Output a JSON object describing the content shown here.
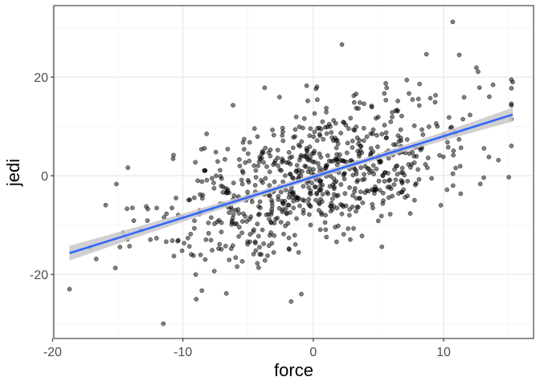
{
  "chart_data": {
    "type": "scatter",
    "title": "",
    "xlabel": "force",
    "ylabel": "jedi",
    "xlim": [
      -19.9,
      16.9
    ],
    "ylim": [
      -33.0,
      34.5
    ],
    "x_ticks": [
      -20,
      -10,
      0,
      10
    ],
    "y_ticks": [
      -20,
      0,
      20
    ],
    "x_tick_labels": [
      "-20",
      "-10",
      "0",
      "10"
    ],
    "y_tick_labels": [
      "-20",
      "0",
      "20"
    ],
    "x_minor": [
      -15,
      -5,
      5,
      15
    ],
    "y_minor": [
      -30,
      -10,
      10,
      30
    ],
    "grid": true,
    "theme": "white background with light gray grid and dark panel border",
    "n_points": 800,
    "point_color": "#000000",
    "point_opacity": 0.5,
    "trend_line": {
      "method": "linear fit with confidence band",
      "x": [
        -18.7,
        15.3
      ],
      "y": [
        -15.7,
        12.4
      ],
      "band_lower": [
        -17.2,
        11.0
      ],
      "band_upper": [
        -14.2,
        13.8
      ],
      "color": "#3366FF",
      "band_color": "#c8c8c8"
    },
    "outliers": [
      {
        "x": -18.7,
        "y": -23.0
      },
      {
        "x": -11.5,
        "y": -30.0
      },
      {
        "x": 10.7,
        "y": 31.2
      },
      {
        "x": 2.2,
        "y": 26.6
      },
      {
        "x": -1.7,
        "y": -25.5
      },
      {
        "x": 15.0,
        "y": -0.3
      },
      {
        "x": 15.3,
        "y": 19.0
      },
      {
        "x": 11.2,
        "y": 24.5
      }
    ]
  }
}
